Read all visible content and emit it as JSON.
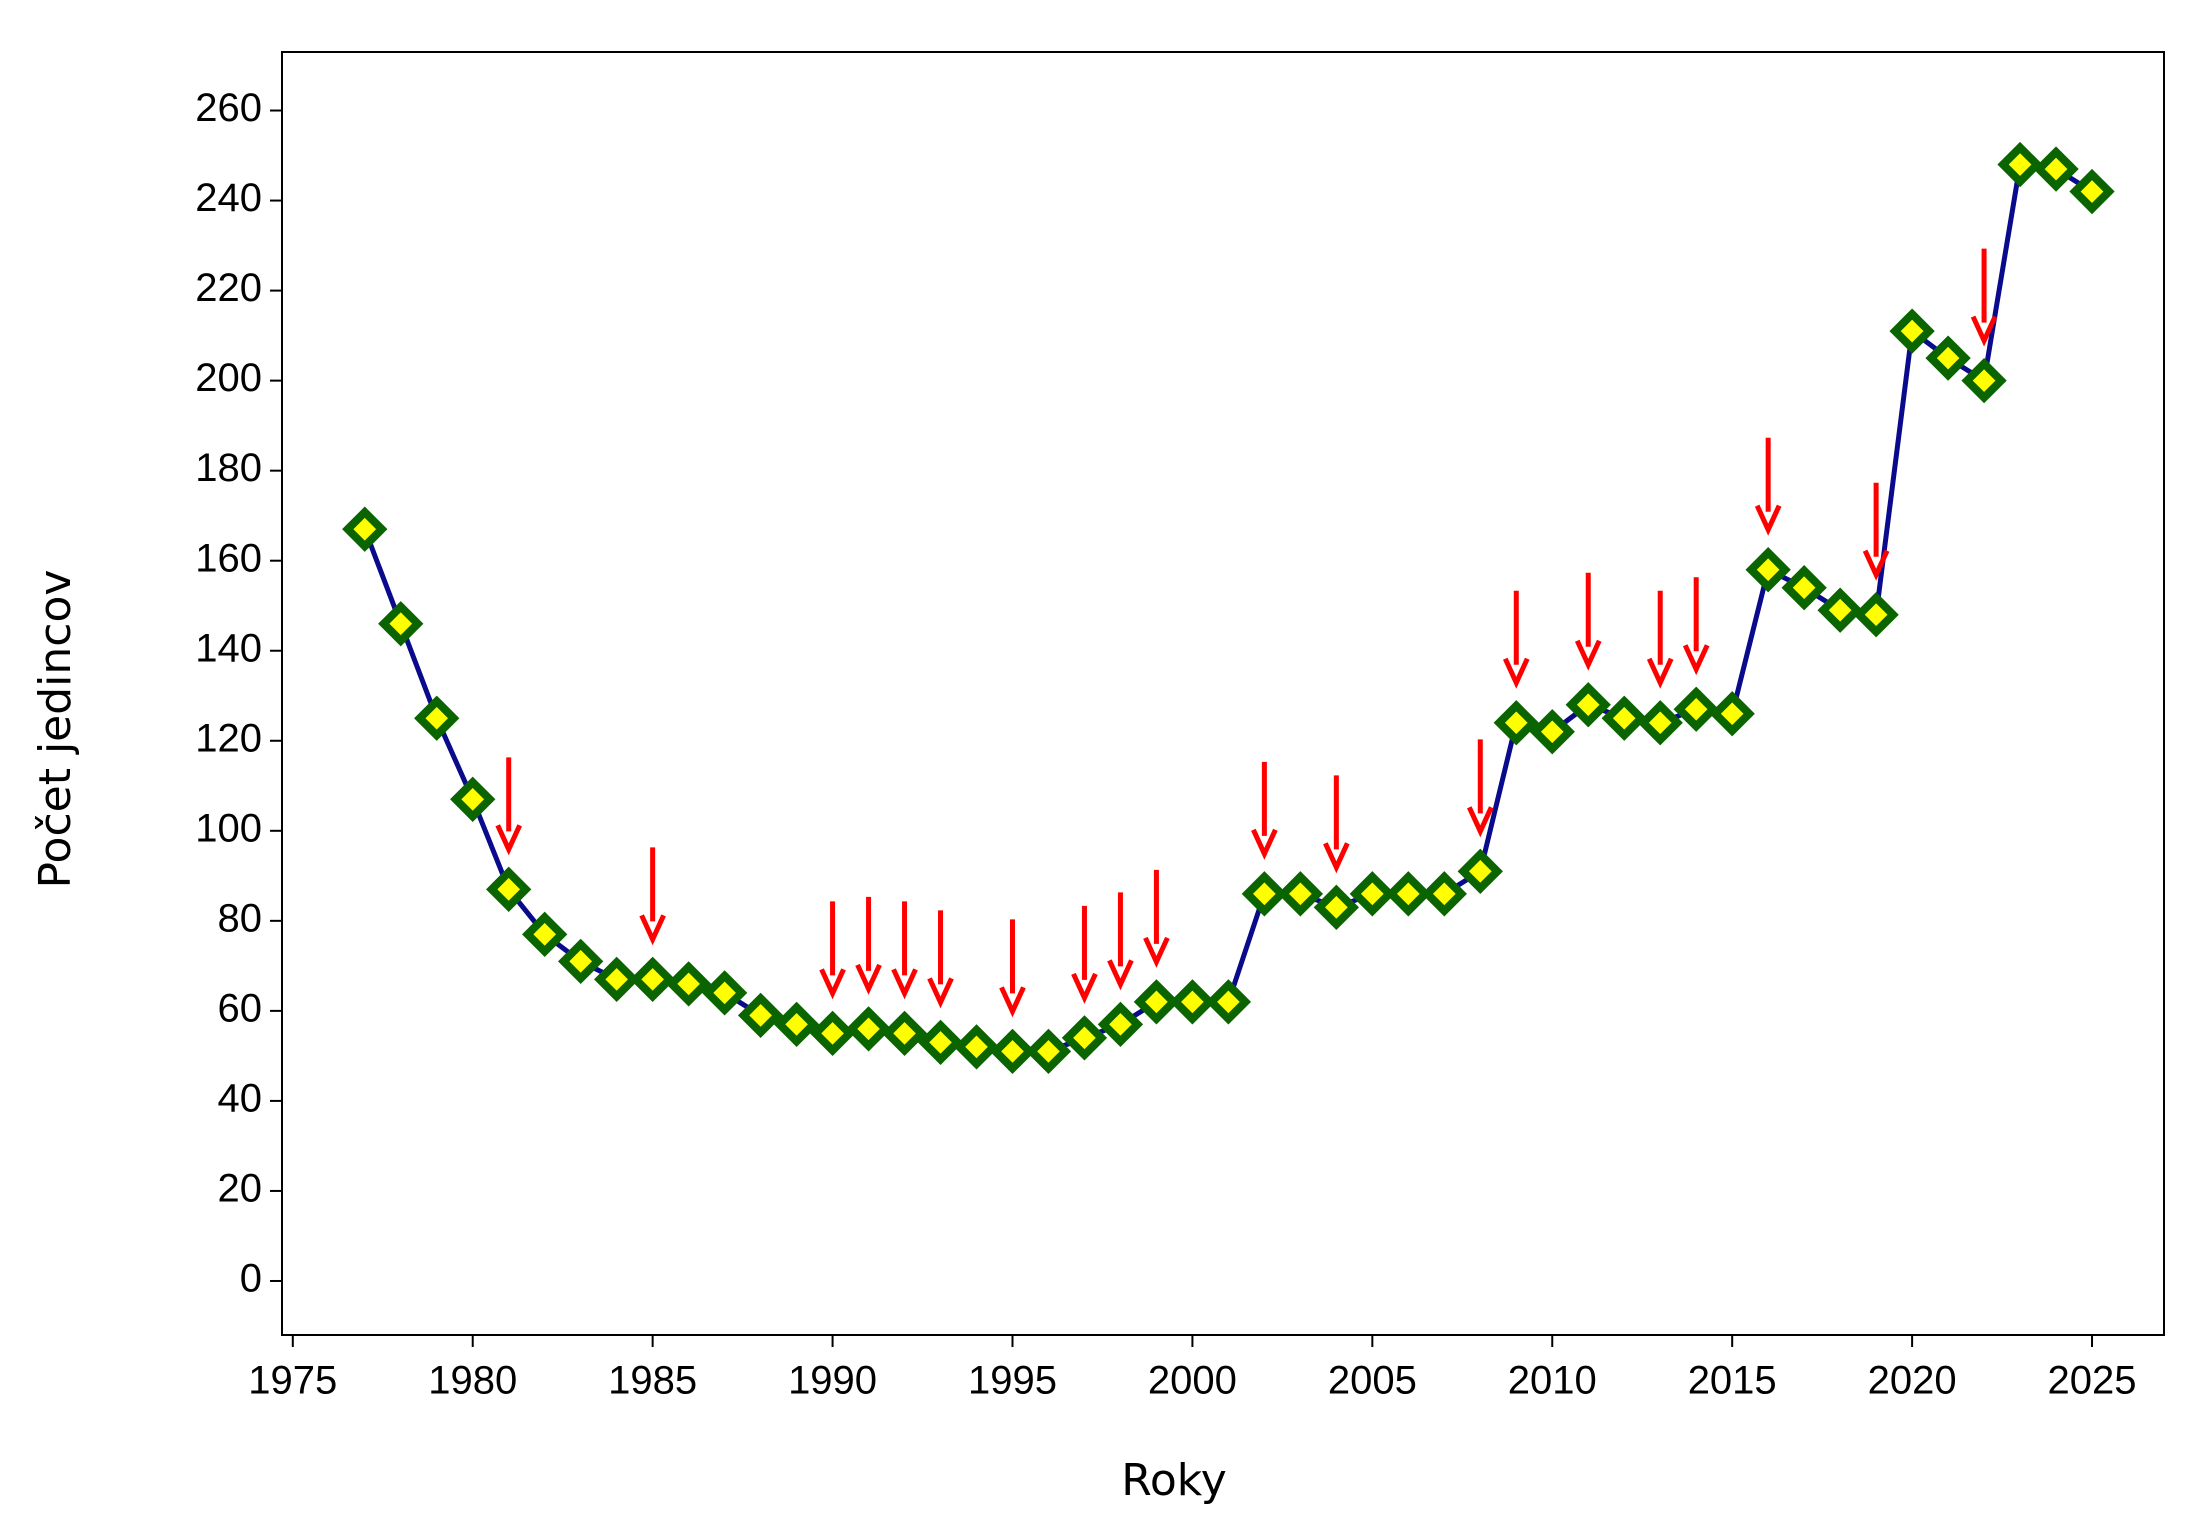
{
  "chart_data": {
    "type": "line",
    "x_label": "Roky",
    "y_label": "Počet jedincov",
    "x": [
      1977,
      1978,
      1979,
      1980,
      1981,
      1982,
      1983,
      1984,
      1985,
      1986,
      1987,
      1988,
      1989,
      1990,
      1991,
      1992,
      1993,
      1994,
      1995,
      1996,
      1997,
      1998,
      1999,
      2000,
      2001,
      2002,
      2003,
      2004,
      2005,
      2006,
      2007,
      2008,
      2009,
      2010,
      2011,
      2012,
      2013,
      2014,
      2015,
      2016,
      2017,
      2018,
      2019,
      2020,
      2021,
      2022,
      2023,
      2024,
      2025
    ],
    "series": [
      {
        "color": "#0a0a8c",
        "marker_fill": "#ffff00",
        "marker_edge": "#0a6400",
        "values": [
          167,
          146,
          125,
          107,
          87,
          77,
          71,
          67,
          67,
          66,
          64,
          59,
          57,
          55,
          56,
          55,
          53,
          52,
          51,
          51,
          54,
          57,
          62,
          62,
          62,
          86,
          86,
          83,
          86,
          86,
          86,
          91,
          124,
          122,
          128,
          125,
          124,
          127,
          126,
          158,
          154,
          149,
          148,
          211,
          205,
          200,
          248,
          247,
          242
        ]
      }
    ],
    "arrows": {
      "color": "#ff0000",
      "x": [
        1981,
        1985,
        1990,
        1991,
        1992,
        1993,
        1995,
        1997,
        1998,
        1999,
        2002,
        2004,
        2008,
        2009,
        2011,
        2013,
        2014,
        2016,
        2019,
        2022
      ]
    },
    "xlim": [
      1974.7,
      2027
    ],
    "ylim": [
      -12,
      273
    ],
    "xticks": [
      1975,
      1980,
      1985,
      1990,
      1995,
      2000,
      2005,
      2010,
      2015,
      2020,
      2025
    ],
    "yticks": [
      0,
      20,
      40,
      60,
      80,
      100,
      120,
      140,
      160,
      180,
      200,
      220,
      240,
      260
    ]
  }
}
